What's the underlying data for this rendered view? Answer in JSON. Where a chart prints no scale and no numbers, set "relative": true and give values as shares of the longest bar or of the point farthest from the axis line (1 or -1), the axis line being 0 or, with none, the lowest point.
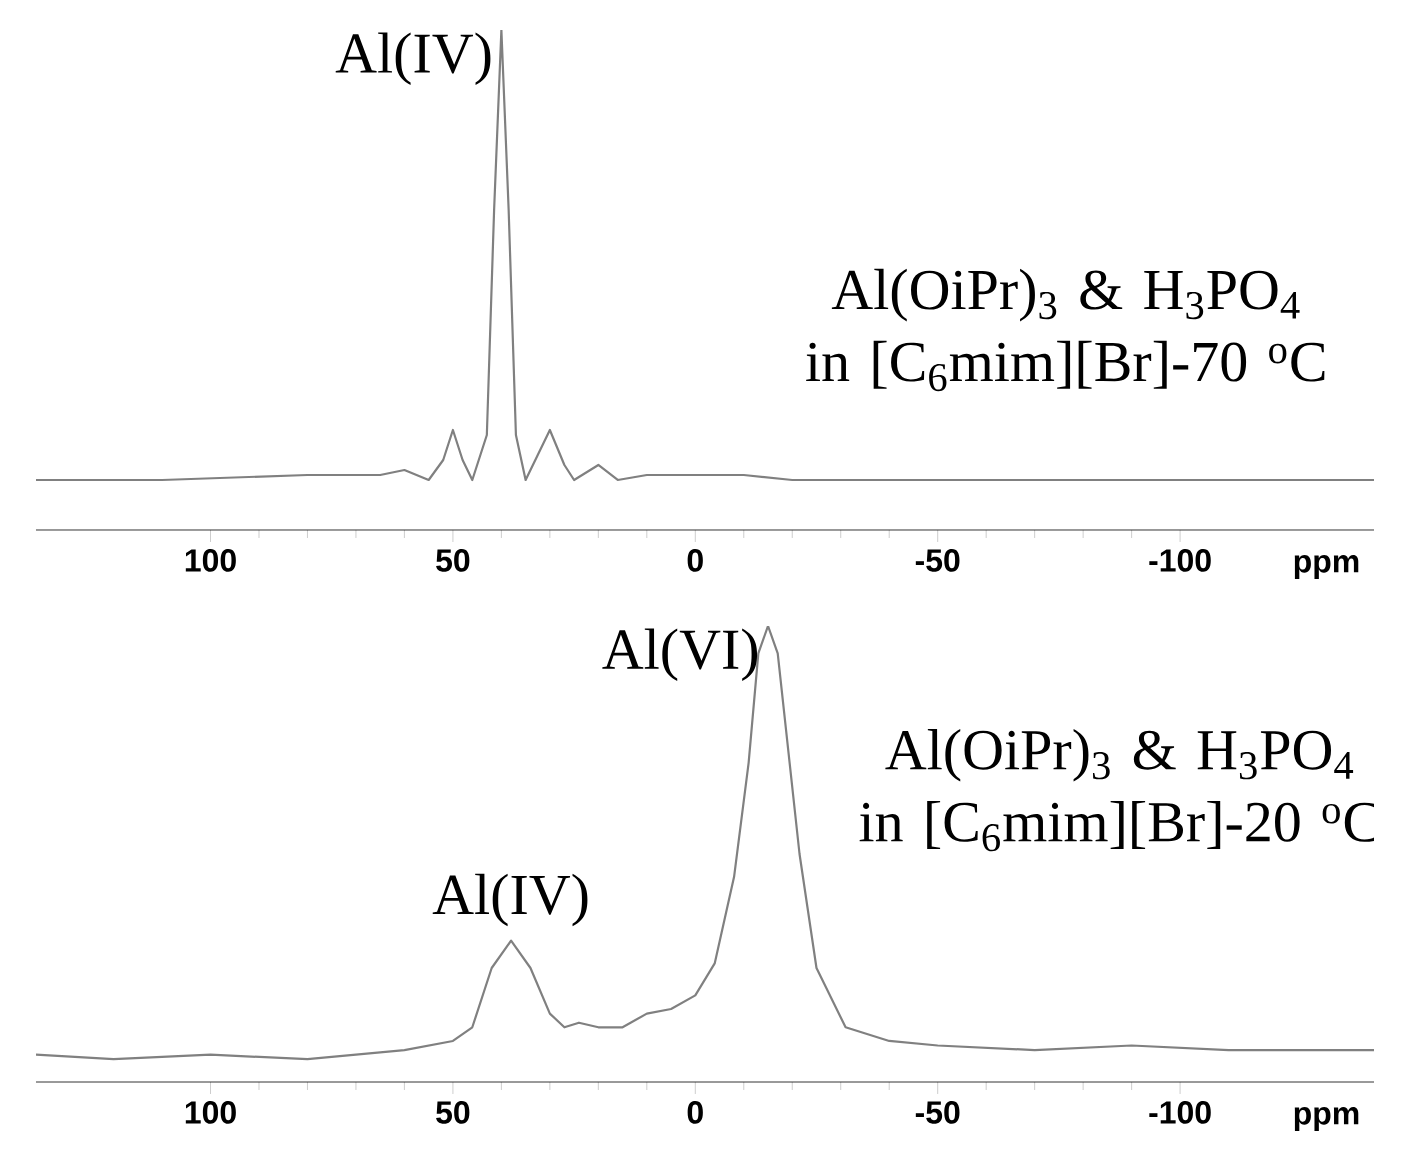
{
  "chart_data": [
    {
      "type": "line",
      "relative": true,
      "xlabel": "ppm",
      "xlim": [
        136,
        -140
      ],
      "xticks": [
        100,
        50,
        0,
        -50,
        -100
      ],
      "x": [
        136,
        110,
        80,
        65,
        60,
        55,
        52,
        50,
        48,
        46,
        43,
        41.5,
        40,
        38.5,
        37,
        35,
        33,
        30,
        27,
        25,
        20,
        16,
        10,
        0,
        -10,
        -20,
        -50,
        -100,
        -140
      ],
      "series": [
        {
          "color": "#808080",
          "values": [
            0.1,
            0.1,
            0.11,
            0.11,
            0.12,
            0.1,
            0.14,
            0.2,
            0.14,
            0.1,
            0.19,
            0.64,
            1.0,
            0.64,
            0.19,
            0.1,
            0.14,
            0.2,
            0.13,
            0.1,
            0.13,
            0.1,
            0.11,
            0.11,
            0.11,
            0.1,
            0.1,
            0.1,
            0.1
          ]
        }
      ],
      "annotations": [
        {
          "text": "Al(IV)",
          "x": 40,
          "y": 1.0
        },
        "Al(OiPr)$_{3}$ & H$_{3}$PO$_{4}$ in [C$_{6}$mim][Br]-70 $^{o}$C"
      ]
    },
    {
      "type": "line",
      "relative": true,
      "xlabel": "ppm",
      "xlim": [
        136,
        -140
      ],
      "xticks": [
        100,
        50,
        0,
        -50,
        -100
      ],
      "x": [
        136,
        120,
        100,
        80,
        60,
        50,
        46,
        42,
        38,
        34,
        30,
        27,
        24,
        20,
        15,
        10,
        5,
        0,
        -4,
        -8,
        -11,
        -13,
        -15,
        -17,
        -21.5,
        -25,
        -31,
        -40,
        -50,
        -70,
        -90,
        -110,
        -140
      ],
      "series": [
        {
          "color": "#808080",
          "values": [
            0.06,
            0.05,
            0.06,
            0.05,
            0.07,
            0.09,
            0.12,
            0.25,
            0.31,
            0.25,
            0.15,
            0.12,
            0.13,
            0.12,
            0.12,
            0.15,
            0.16,
            0.19,
            0.26,
            0.45,
            0.7,
            0.94,
            1.0,
            0.94,
            0.5,
            0.25,
            0.12,
            0.09,
            0.08,
            0.07,
            0.08,
            0.07,
            0.07
          ]
        }
      ],
      "annotations": [
        {
          "text": "Al(VI)",
          "x": -15,
          "y": 1.0
        },
        {
          "text": "Al(IV)",
          "x": 38,
          "y": 0.31
        },
        "Al(OiPr)$_{3}$ & H$_{3}$PO$_{4}$ in [C$_{6}$mim][Br]-20 $^{o}$C"
      ]
    }
  ]
}
